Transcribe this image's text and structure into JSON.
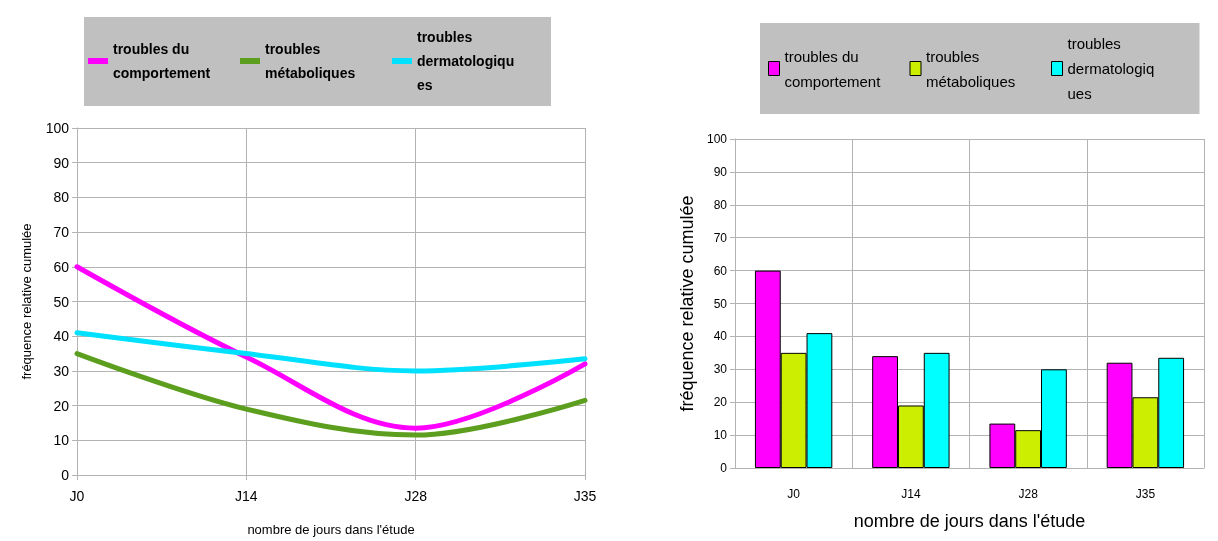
{
  "chart_data": [
    {
      "type": "line",
      "categories": [
        "J0",
        "J14",
        "J28",
        "J35"
      ],
      "series": [
        {
          "name": "troubles du comportement",
          "color": "#ff00ff",
          "values": [
            60,
            34,
            13.5,
            32
          ]
        },
        {
          "name": "troubles métaboliques",
          "color": "#5c9e1e",
          "values": [
            35,
            19,
            11.5,
            21.5
          ]
        },
        {
          "name": "troubles dermatologiques",
          "color": "#00e1ff",
          "values": [
            41,
            35,
            30,
            33.5
          ]
        }
      ],
      "xlabel": "nombre de jours dans l'étude",
      "ylabel": "fréquence relative cumulée",
      "ylim": [
        0,
        100
      ],
      "yticks": [
        0,
        10,
        20,
        30,
        40,
        50,
        60,
        70,
        80,
        90,
        100
      ],
      "grid": true,
      "legend": "top",
      "marker": "none",
      "line_style": "solid"
    },
    {
      "type": "bar",
      "categories": [
        "J0",
        "J14",
        "J28",
        "J35"
      ],
      "series": [
        {
          "name": "troubles du comportement",
          "color": "#ff00ff",
          "values": [
            60,
            34,
            13.5,
            32
          ]
        },
        {
          "name": "troubles métaboliques",
          "color": "#ccee00",
          "values": [
            35,
            19,
            11.5,
            21.5
          ]
        },
        {
          "name": "troubles dermatologiques",
          "color": "#00ffff",
          "values": [
            41,
            35,
            30,
            33.5
          ]
        }
      ],
      "xlabel": "nombre de jours dans l'étude",
      "ylabel": "fréquence relative cumulée",
      "ylim": [
        0,
        100
      ],
      "yticks": [
        0,
        10,
        20,
        30,
        40,
        50,
        60,
        70,
        80,
        90,
        100
      ],
      "grid": true,
      "legend": "top"
    }
  ]
}
